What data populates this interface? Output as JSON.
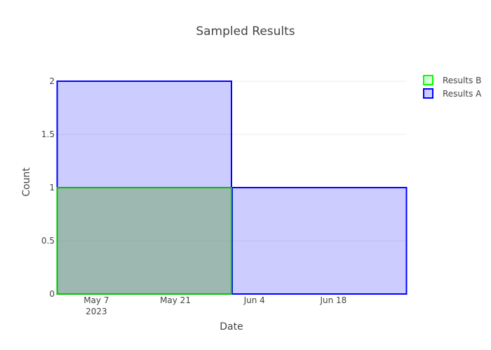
{
  "chart_data": {
    "type": "bar",
    "title": "Sampled Results",
    "xlabel": "Date",
    "ylabel": "Count",
    "x_axis_type": "date",
    "xlim": [
      "2023-04-30",
      "2023-07-01"
    ],
    "ylim": [
      0,
      2
    ],
    "grid": true,
    "legend_position": "top-right",
    "x_ticks": [
      {
        "date": "2023-05-07",
        "label": "May 7",
        "sublabel": "2023"
      },
      {
        "date": "2023-05-21",
        "label": "May 21",
        "sublabel": ""
      },
      {
        "date": "2023-06-04",
        "label": "Jun 4",
        "sublabel": ""
      },
      {
        "date": "2023-06-18",
        "label": "Jun 18",
        "sublabel": ""
      }
    ],
    "y_ticks": [
      {
        "value": 0,
        "label": "0"
      },
      {
        "value": 0.5,
        "label": "0.5"
      },
      {
        "value": 1,
        "label": "1"
      },
      {
        "value": 1.5,
        "label": "1.5"
      },
      {
        "value": 2,
        "label": "2"
      }
    ],
    "series": [
      {
        "name": "Results A",
        "line_color": "#0000ff",
        "fill_color": "rgba(0,0,255,0.2)",
        "bins": [
          {
            "start": "2023-04-30",
            "end": "2023-05-31",
            "count": 2
          },
          {
            "start": "2023-05-31",
            "end": "2023-07-01",
            "count": 1
          }
        ]
      },
      {
        "name": "Results B",
        "line_color": "#00c000",
        "fill_color": "rgba(100,160,80,0.45)",
        "bins": [
          {
            "start": "2023-04-30",
            "end": "2023-05-31",
            "count": 1
          }
        ]
      }
    ],
    "legend": [
      {
        "name": "Results B",
        "color": "#00ff00"
      },
      {
        "name": "Results A",
        "color": "#0000ff"
      }
    ]
  }
}
